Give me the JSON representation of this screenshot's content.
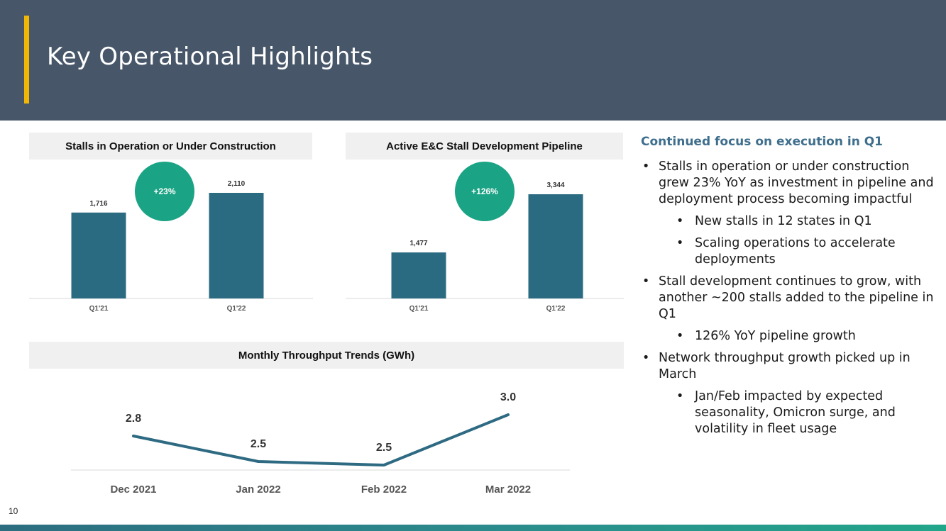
{
  "header": {
    "title": "Key Operational Highlights"
  },
  "stalls_chart": {
    "title": "Stalls in Operation or Under Construction",
    "badge": "+23%",
    "bars": [
      {
        "category": "Q1'21",
        "value": 1716,
        "label": "1,716"
      },
      {
        "category": "Q1'22",
        "value": 2110,
        "label": "2,110"
      }
    ]
  },
  "pipeline_chart": {
    "title": "Active E&C Stall Development Pipeline",
    "badge": "+126%",
    "bars": [
      {
        "category": "Q1'21",
        "value": 1477,
        "label": "1,477"
      },
      {
        "category": "Q1'22",
        "value": 3344,
        "label": "3,344"
      }
    ]
  },
  "throughput_chart": {
    "title": "Monthly Throughput Trends (GWh)",
    "points": [
      {
        "category": "Dec 2021",
        "value": 2.8,
        "label": "2.8"
      },
      {
        "category": "Jan 2022",
        "value": 2.5,
        "label": "2.5"
      },
      {
        "category": "Feb 2022",
        "value": 2.5,
        "label": "2.5"
      },
      {
        "category": "Mar 2022",
        "value": 3.0,
        "label": "3.0"
      }
    ]
  },
  "chart_data": [
    {
      "type": "bar",
      "title": "Stalls in Operation or Under Construction",
      "categories": [
        "Q1'21",
        "Q1'22"
      ],
      "values": [
        1716,
        2110
      ],
      "annotations": [
        "+23%"
      ]
    },
    {
      "type": "bar",
      "title": "Active E&C Stall Development Pipeline",
      "categories": [
        "Q1'21",
        "Q1'22"
      ],
      "values": [
        1477,
        3344
      ],
      "annotations": [
        "+126%"
      ]
    },
    {
      "type": "line",
      "title": "Monthly Throughput Trends (GWh)",
      "categories": [
        "Dec 2021",
        "Jan 2022",
        "Feb 2022",
        "Mar 2022"
      ],
      "values": [
        2.8,
        2.5,
        2.5,
        3.0
      ]
    }
  ],
  "highlights": {
    "heading": "Continued focus on execution in Q1",
    "bullet_char": "•",
    "items": [
      {
        "level": 1,
        "text": "Stalls in operation or under construction grew 23% YoY as investment in pipeline and deployment process becoming impactful"
      },
      {
        "level": 2,
        "text": "New stalls in 12 states in Q1"
      },
      {
        "level": 2,
        "text": "Scaling operations to accelerate deployments"
      },
      {
        "level": 1,
        "text": "Stall development continues to grow, with another ~200 stalls added to the pipeline in Q1"
      },
      {
        "level": 2,
        "text": "126% YoY pipeline growth"
      },
      {
        "level": 1,
        "text": "Network throughput growth picked up in March"
      },
      {
        "level": 2,
        "text": "Jan/Feb impacted by expected seasonality, Omicron surge, and volatility in fleet usage"
      }
    ]
  },
  "page_number": "10",
  "colors": {
    "header_bg": "#475669",
    "accent": "#f2b705",
    "bar": "#2b6b82",
    "badge": "#1aa384",
    "line": "#2e6a82",
    "heading": "#3e6e8c"
  }
}
